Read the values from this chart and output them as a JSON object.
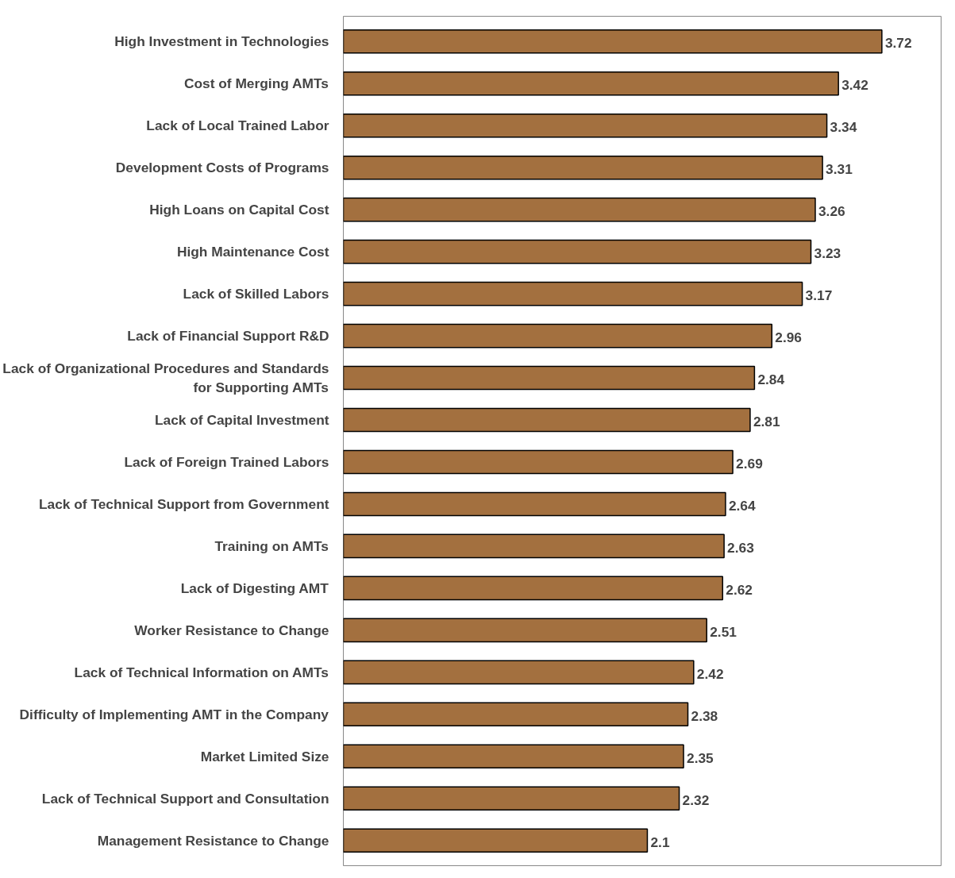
{
  "chart_data": {
    "type": "bar",
    "orientation": "horizontal",
    "data_labels": true,
    "tick_labels": "y",
    "color": "#a3703f",
    "categories": [
      "High Investment in Technologies",
      "Cost of Merging AMTs",
      "Lack of Local Trained Labor",
      "Development Costs of Programs",
      "High Loans on Capital Cost",
      "High Maintenance Cost",
      "Lack of Skilled Labors",
      "Lack of Financial Support R&D",
      "Lack of Organizational Procedures and Standards for Supporting AMTs",
      "Lack of Capital Investment",
      "Lack of Foreign Trained Labors",
      "Lack of Technical Support from Government",
      "Training on AMTs",
      "Lack of Digesting AMT",
      "Worker Resistance to Change",
      "Lack of Technical Information on AMTs",
      "Difficulty of Implementing AMT in the Company",
      "Market Limited Size",
      "Lack of Technical Support and Consultation",
      "Management Resistance to Change"
    ],
    "values": [
      3.72,
      3.42,
      3.34,
      3.31,
      3.26,
      3.23,
      3.17,
      2.96,
      2.84,
      2.81,
      2.69,
      2.64,
      2.63,
      2.62,
      2.51,
      2.42,
      2.38,
      2.35,
      2.32,
      2.1
    ]
  }
}
